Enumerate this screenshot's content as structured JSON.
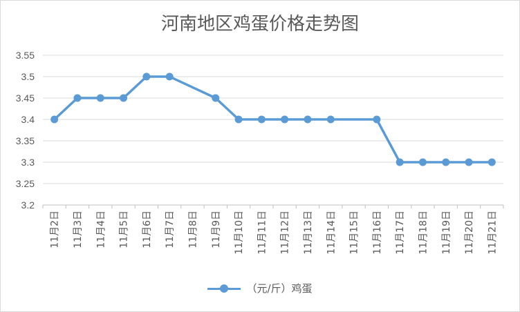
{
  "chart_data": {
    "type": "line",
    "title": "河南地区鸡蛋价格走势图",
    "categories": [
      "11月2日",
      "11月3日",
      "11月4日",
      "11月5日",
      "11月6日",
      "11月7日",
      "11月8日",
      "11月9日",
      "11月10日",
      "11月11日",
      "11月12日",
      "11月13日",
      "11月14日",
      "11月15日",
      "11月16日",
      "11月17日",
      "11月18日",
      "11月19日",
      "11月20日",
      "11月21日"
    ],
    "series": [
      {
        "name": "（元/斤）鸡蛋",
        "values": [
          3.4,
          3.45,
          3.45,
          3.45,
          3.5,
          3.5,
          null,
          3.45,
          3.4,
          3.4,
          3.4,
          3.4,
          3.4,
          null,
          3.4,
          3.3,
          3.3,
          3.3,
          3.3,
          3.3
        ]
      }
    ],
    "ylim": [
      3.2,
      3.55
    ],
    "yticks": [
      "3.2",
      "3.25",
      "3.3",
      "3.35",
      "3.4",
      "3.45",
      "3.5",
      "3.55"
    ],
    "grid": true,
    "legend_position": "bottom",
    "color": "#5b9bd5"
  }
}
